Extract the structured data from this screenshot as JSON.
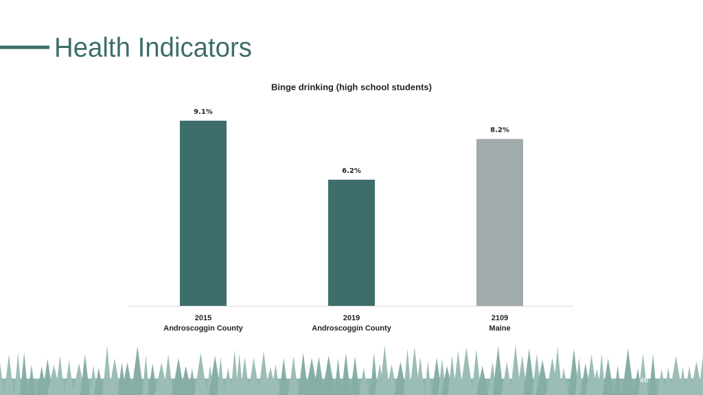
{
  "slide_title": "Health Indicators",
  "page_number": "46",
  "chart_data": {
    "type": "bar",
    "title": "Binge drinking (high school students)",
    "categories": [
      [
        "2015",
        "Androscoggin County"
      ],
      [
        "2019",
        "Androscoggin County"
      ],
      [
        "2109",
        "Maine"
      ]
    ],
    "values": [
      9.1,
      6.2,
      8.2
    ],
    "value_labels": [
      "9.1%",
      "6.2%",
      "8.2%"
    ],
    "colors": [
      "#3d6e6b",
      "#3d6e6b",
      "#a1abac"
    ]
  }
}
